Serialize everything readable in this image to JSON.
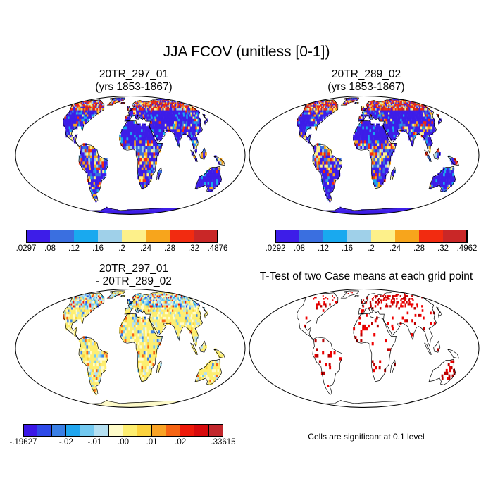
{
  "title": "JJA FCOV (unitless [0-1])",
  "panels": {
    "top_left": {
      "title_line1": "20TR_297_01",
      "title_line2": "(yrs 1853-1867)"
    },
    "top_right": {
      "title_line1": "20TR_289_02",
      "title_line2": "(yrs 1853-1867)"
    },
    "bottom_left": {
      "title_line1": "20TR_297_01",
      "title_line2": "- 20TR_289_02"
    },
    "bottom_right": {
      "title_line1": "T-Test of two Case means at each grid point"
    }
  },
  "colorbars": {
    "top_left": {
      "colors": [
        "#3d1de8",
        "#3a6fe0",
        "#19a9ef",
        "#9fd0e9",
        "#fdf08a",
        "#f7a51c",
        "#f22b10",
        "#c92727"
      ],
      "labels": [
        ".0297",
        ".08",
        ".12",
        ".16",
        ".2",
        ".24",
        ".28",
        ".32",
        ".4876"
      ]
    },
    "top_right": {
      "colors": [
        "#3d1de8",
        "#3a6fe0",
        "#19a9ef",
        "#9fd0e9",
        "#fdf08a",
        "#f7a51c",
        "#f22b10",
        "#c92727"
      ],
      "labels": [
        ".0292",
        ".08",
        ".12",
        ".16",
        ".2",
        ".24",
        ".28",
        ".32",
        ".4962"
      ]
    },
    "bottom_left": {
      "colors": [
        "#3b17e6",
        "#2e4ae8",
        "#3a7fe5",
        "#21a6ef",
        "#73c9f0",
        "#b5e0f2",
        "#fefbc9",
        "#fdee70",
        "#fcd33d",
        "#f9a325",
        "#f66413",
        "#ee1a0a",
        "#d70a0c",
        "#c2272c"
      ],
      "labels": [
        "-.19627",
        "-.02",
        "-.01",
        ".00",
        ".01",
        ".02",
        ".33615"
      ]
    }
  },
  "note": "Cells are significant at 0.1 level"
}
